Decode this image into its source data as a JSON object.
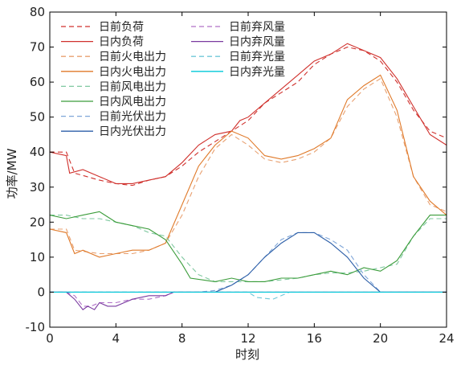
{
  "chart_data": {
    "type": "line",
    "xlabel": "时刻",
    "ylabel": "功率/MW",
    "xlim": [
      0,
      24
    ],
    "ylim": [
      -10,
      80
    ],
    "xticks": [
      0,
      4,
      8,
      12,
      16,
      20,
      24
    ],
    "yticks": [
      -10,
      0,
      10,
      20,
      30,
      40,
      50,
      60,
      70,
      80
    ],
    "grid": false,
    "legend_position": "top-left",
    "series": [
      {
        "name": "日前负荷",
        "color": "#d0312d",
        "dash": "dashed",
        "points": [
          [
            0,
            40
          ],
          [
            1,
            40
          ],
          [
            1.5,
            34
          ],
          [
            3,
            32
          ],
          [
            4,
            31
          ],
          [
            5,
            30.5
          ],
          [
            6,
            32
          ],
          [
            7,
            33
          ],
          [
            8,
            36
          ],
          [
            9,
            40
          ],
          [
            10,
            43
          ],
          [
            11,
            46
          ],
          [
            12,
            49
          ],
          [
            13,
            54
          ],
          [
            14,
            57
          ],
          [
            15,
            60
          ],
          [
            16,
            65
          ],
          [
            17,
            68
          ],
          [
            18,
            70
          ],
          [
            19,
            69
          ],
          [
            20,
            66
          ],
          [
            21,
            60
          ],
          [
            22,
            52
          ],
          [
            23,
            46
          ],
          [
            24,
            44
          ]
        ]
      },
      {
        "name": "日内负荷",
        "color": "#d0312d",
        "dash": "solid",
        "points": [
          [
            0,
            40
          ],
          [
            1,
            39
          ],
          [
            1.2,
            34
          ],
          [
            2,
            35
          ],
          [
            3,
            33
          ],
          [
            4,
            31
          ],
          [
            5,
            31
          ],
          [
            6,
            32
          ],
          [
            7,
            33
          ],
          [
            8,
            37
          ],
          [
            9,
            42
          ],
          [
            10,
            45
          ],
          [
            11,
            46
          ],
          [
            11.5,
            49
          ],
          [
            12,
            50
          ],
          [
            13,
            54
          ],
          [
            14,
            58
          ],
          [
            15,
            62
          ],
          [
            16,
            66
          ],
          [
            17,
            68
          ],
          [
            18,
            71
          ],
          [
            19,
            69
          ],
          [
            20,
            67
          ],
          [
            21,
            61
          ],
          [
            22,
            53
          ],
          [
            23,
            45
          ],
          [
            24,
            42
          ]
        ]
      },
      {
        "name": "日前火电出力",
        "color": "#e8a070",
        "dash": "dashed",
        "points": [
          [
            0,
            18
          ],
          [
            1,
            18
          ],
          [
            1.5,
            12
          ],
          [
            3,
            11
          ],
          [
            4,
            11
          ],
          [
            5,
            11
          ],
          [
            6,
            12
          ],
          [
            7,
            14
          ],
          [
            8,
            22
          ],
          [
            9,
            33
          ],
          [
            10,
            41
          ],
          [
            11,
            45
          ],
          [
            12,
            42
          ],
          [
            13,
            38
          ],
          [
            14,
            37
          ],
          [
            15,
            38
          ],
          [
            16,
            40
          ],
          [
            17,
            44
          ],
          [
            18,
            53
          ],
          [
            19,
            58
          ],
          [
            20,
            61
          ],
          [
            21,
            50
          ],
          [
            22,
            33
          ],
          [
            23,
            25
          ],
          [
            24,
            23
          ]
        ]
      },
      {
        "name": "日内火电出力",
        "color": "#e07a2a",
        "dash": "solid",
        "points": [
          [
            0,
            18
          ],
          [
            1,
            17
          ],
          [
            1.5,
            11
          ],
          [
            2,
            12
          ],
          [
            3,
            10
          ],
          [
            4,
            11
          ],
          [
            5,
            12
          ],
          [
            6,
            12
          ],
          [
            7,
            14
          ],
          [
            8,
            25
          ],
          [
            9,
            36
          ],
          [
            10,
            42
          ],
          [
            11,
            46
          ],
          [
            12,
            44
          ],
          [
            13,
            39
          ],
          [
            14,
            38
          ],
          [
            15,
            39
          ],
          [
            16,
            41
          ],
          [
            17,
            44
          ],
          [
            18,
            55
          ],
          [
            19,
            59
          ],
          [
            20,
            62
          ],
          [
            21,
            52
          ],
          [
            22,
            33
          ],
          [
            23,
            26
          ],
          [
            24,
            22
          ]
        ]
      },
      {
        "name": "日前风电出力",
        "color": "#7fc8a0",
        "dash": "dashed",
        "points": [
          [
            0,
            22
          ],
          [
            1,
            22
          ],
          [
            2,
            21
          ],
          [
            3,
            21
          ],
          [
            4,
            20
          ],
          [
            5,
            19
          ],
          [
            6,
            17
          ],
          [
            7,
            16
          ],
          [
            8,
            10
          ],
          [
            9,
            5
          ],
          [
            10,
            3
          ],
          [
            11,
            3
          ],
          [
            12,
            3
          ],
          [
            13,
            3
          ],
          [
            14,
            3.5
          ],
          [
            15,
            4
          ],
          [
            16,
            5
          ],
          [
            17,
            5.5
          ],
          [
            18,
            5.5
          ],
          [
            19,
            6
          ],
          [
            20,
            7
          ],
          [
            21,
            8
          ],
          [
            22,
            16
          ],
          [
            23,
            21
          ],
          [
            24,
            21
          ]
        ]
      },
      {
        "name": "日内风电出力",
        "color": "#3a9c3a",
        "dash": "solid",
        "points": [
          [
            0,
            22
          ],
          [
            1,
            21
          ],
          [
            2,
            22
          ],
          [
            3,
            23
          ],
          [
            4,
            20
          ],
          [
            5,
            19
          ],
          [
            6,
            18
          ],
          [
            7,
            15
          ],
          [
            8,
            8
          ],
          [
            8.5,
            4
          ],
          [
            10,
            3
          ],
          [
            11,
            4
          ],
          [
            12,
            3
          ],
          [
            13,
            3
          ],
          [
            14,
            4
          ],
          [
            15,
            4
          ],
          [
            16,
            5
          ],
          [
            17,
            6
          ],
          [
            18,
            5
          ],
          [
            19,
            7
          ],
          [
            20,
            6
          ],
          [
            21,
            9
          ],
          [
            22,
            16
          ],
          [
            23,
            22
          ],
          [
            24,
            22
          ]
        ]
      },
      {
        "name": "日前光伏出力",
        "color": "#7fa6d8",
        "dash": "dashed",
        "points": [
          [
            0,
            0
          ],
          [
            9,
            0
          ],
          [
            10,
            0.5
          ],
          [
            11,
            2
          ],
          [
            12,
            5
          ],
          [
            13,
            10
          ],
          [
            14,
            15
          ],
          [
            15,
            17
          ],
          [
            16,
            17
          ],
          [
            17,
            15
          ],
          [
            18,
            12
          ],
          [
            19,
            5
          ],
          [
            20,
            0
          ],
          [
            24,
            0
          ]
        ]
      },
      {
        "name": "日内光伏出力",
        "color": "#2d5fa8",
        "dash": "solid",
        "points": [
          [
            0,
            0
          ],
          [
            9.5,
            0
          ],
          [
            10,
            0
          ],
          [
            11,
            2
          ],
          [
            12,
            5
          ],
          [
            13,
            10
          ],
          [
            14,
            14
          ],
          [
            15,
            17
          ],
          [
            16,
            17
          ],
          [
            17,
            14
          ],
          [
            18,
            10
          ],
          [
            19,
            4
          ],
          [
            20,
            0
          ],
          [
            24,
            0
          ]
        ]
      },
      {
        "name": "日前弃风量",
        "color": "#b070c8",
        "dash": "dashed",
        "points": [
          [
            0,
            0
          ],
          [
            1,
            0
          ],
          [
            1.5,
            -1
          ],
          [
            2,
            -4
          ],
          [
            2.5,
            -4
          ],
          [
            3,
            -3
          ],
          [
            4,
            -3
          ],
          [
            5,
            -2
          ],
          [
            6,
            -2
          ],
          [
            7,
            -1
          ],
          [
            7.5,
            0
          ],
          [
            24,
            0
          ]
        ]
      },
      {
        "name": "日内弃风量",
        "color": "#7a3aa0",
        "dash": "solid",
        "points": [
          [
            0,
            0
          ],
          [
            1,
            0
          ],
          [
            1.5,
            -2
          ],
          [
            2,
            -5
          ],
          [
            2.3,
            -4
          ],
          [
            2.7,
            -5
          ],
          [
            3,
            -3
          ],
          [
            3.5,
            -4
          ],
          [
            4,
            -4
          ],
          [
            4.5,
            -3
          ],
          [
            5,
            -2
          ],
          [
            6,
            -1
          ],
          [
            7,
            -1
          ],
          [
            7.5,
            0
          ],
          [
            24,
            0
          ]
        ]
      },
      {
        "name": "日前弃光量",
        "color": "#70c8d8",
        "dash": "dashed",
        "points": [
          [
            0,
            0
          ],
          [
            12,
            0
          ],
          [
            12.5,
            -1.5
          ],
          [
            13.5,
            -2
          ],
          [
            14,
            -1
          ],
          [
            14.5,
            0
          ],
          [
            24,
            0
          ]
        ]
      },
      {
        "name": "日内弃光量",
        "color": "#00c8d8",
        "dash": "solid",
        "points": [
          [
            0,
            0
          ],
          [
            24,
            0
          ]
        ]
      }
    ]
  }
}
